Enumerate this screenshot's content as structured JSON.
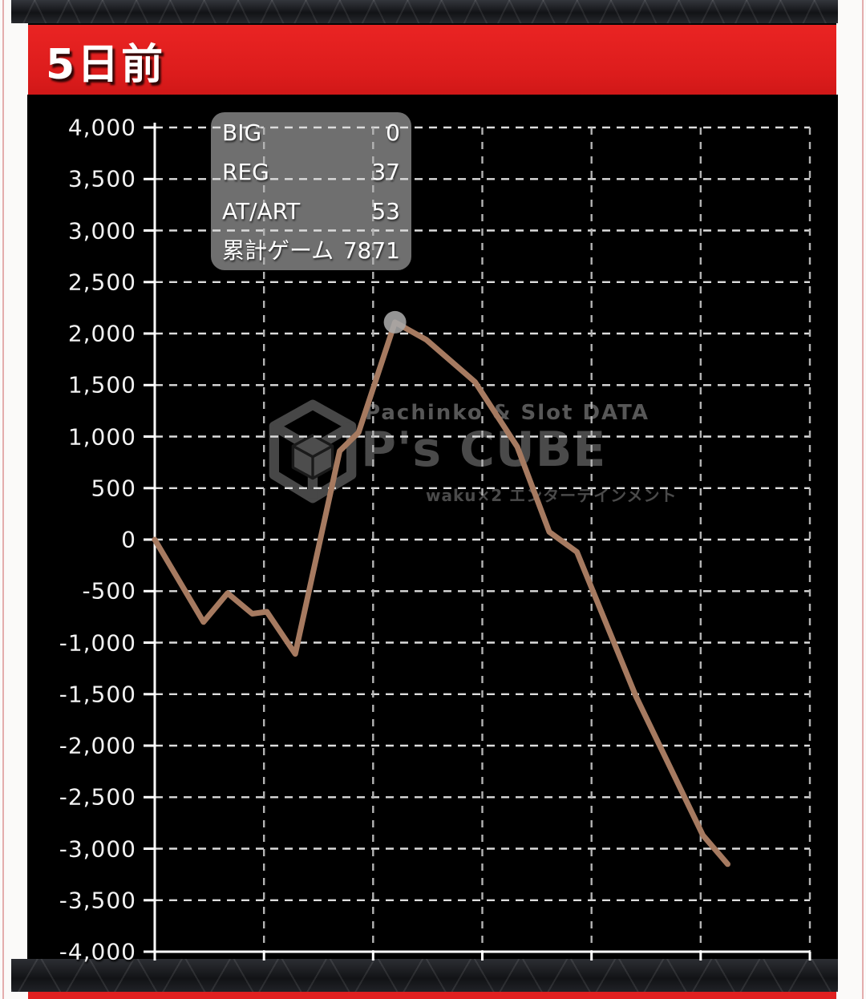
{
  "header": {
    "title": "5日前"
  },
  "stats_box": {
    "rows": [
      {
        "label": "BIG",
        "value": "0"
      },
      {
        "label": "REG",
        "value": "37"
      },
      {
        "label": "AT/ART",
        "value": "53"
      },
      {
        "label": "累計ゲーム",
        "value": "7871"
      }
    ]
  },
  "watermark": {
    "line1": "Pachinko & Slot DATA",
    "line2": "P's CUBE",
    "line3": "waku×2 エンターテインメント"
  },
  "chart_data": {
    "type": "line",
    "xlabel": "",
    "ylabel": "",
    "xlim": [
      0,
      9000
    ],
    "ylim": [
      -4000,
      4000
    ],
    "x_gridline_count": 6,
    "y_tick_step": 500,
    "grid": true,
    "y_ticks": [
      "4,000",
      "3,500",
      "3,000",
      "2,500",
      "2,000",
      "1,500",
      "1,000",
      "500",
      "0",
      "-500",
      "-1,000",
      "-1,500",
      "-2,000",
      "-2,500",
      "-3,000",
      "-3,500",
      "-4,000"
    ],
    "points": [
      [
        0,
        0
      ],
      [
        670,
        -800
      ],
      [
        1000,
        -520
      ],
      [
        1340,
        -720
      ],
      [
        1540,
        -700
      ],
      [
        1930,
        -1110
      ],
      [
        2540,
        860
      ],
      [
        2800,
        1040
      ],
      [
        3300,
        2110
      ],
      [
        3730,
        1940
      ],
      [
        4400,
        1530
      ],
      [
        4980,
        900
      ],
      [
        5420,
        75
      ],
      [
        5800,
        -120
      ],
      [
        6610,
        -1520
      ],
      [
        7530,
        -2870
      ],
      [
        7871,
        -3150
      ]
    ],
    "peak_marker": {
      "games": 3300,
      "value": 2110
    },
    "line_color": "#a67a60",
    "marker_color": "#a9a9a9",
    "grid_color": "#dcdcdc",
    "axis_color": "#ffffff",
    "background": "#000000"
  },
  "colors": {
    "header_red": "#dc1c1c",
    "footer_red": "#e02020",
    "page_border_pink": "#e4adad",
    "stats_box_gray": "#6f6f6f"
  }
}
